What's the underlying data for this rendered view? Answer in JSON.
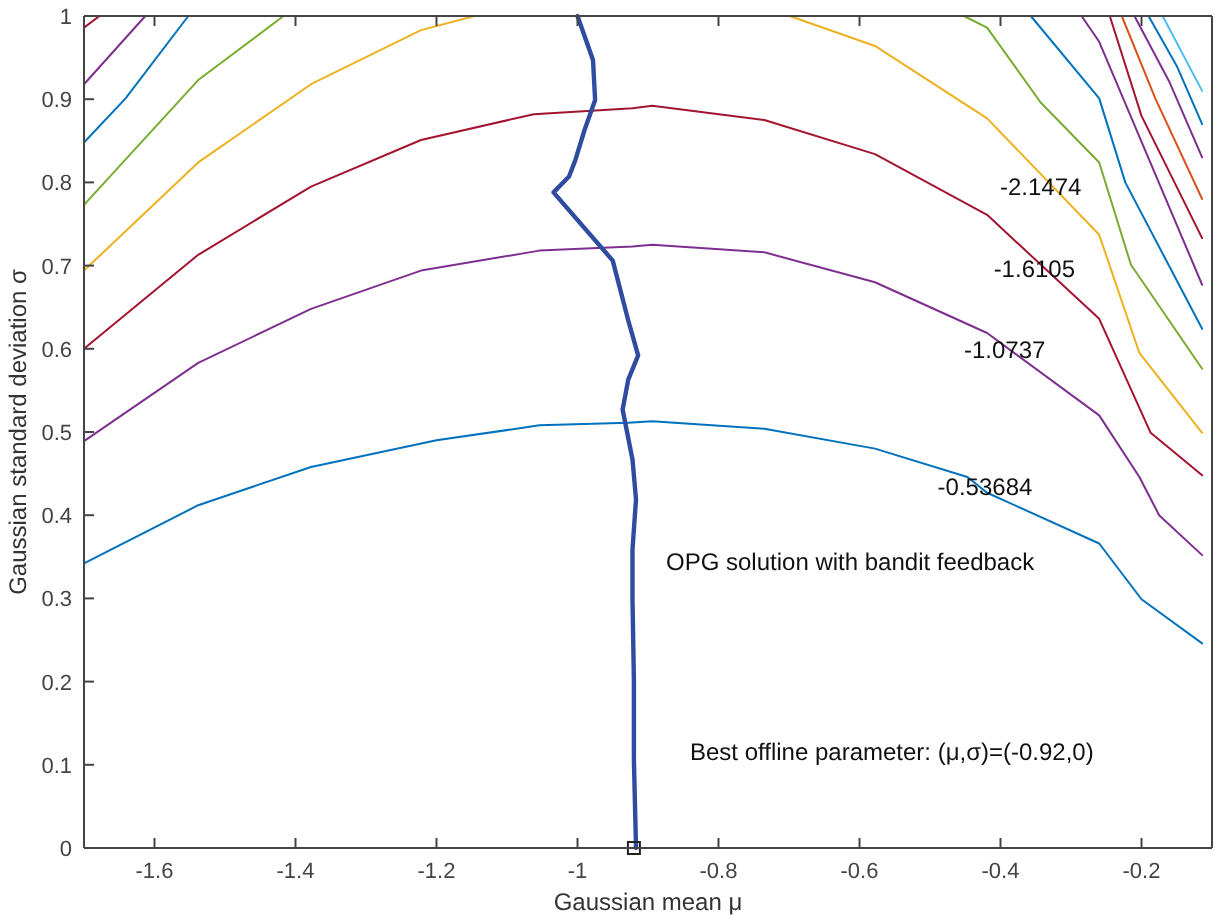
{
  "chart_data": {
    "type": "line",
    "xlabel": "Gaussian mean μ",
    "ylabel": "Gaussian standard deviation σ",
    "xlim": [
      -1.7,
      -0.1
    ],
    "ylim": [
      0,
      1
    ],
    "xticks": [
      -1.6,
      -1.4,
      -1.2,
      -1,
      -0.8,
      -0.6,
      -0.4,
      -0.2
    ],
    "yticks": [
      0,
      0.1,
      0.2,
      0.3,
      0.4,
      0.5,
      0.6,
      0.7,
      0.8,
      0.9,
      1
    ],
    "grid": false,
    "line_style": "solid",
    "series": [
      {
        "color": "#0072bd",
        "x": [
          -1.7,
          -1.538,
          -1.378,
          -1.2,
          -1.054,
          -0.928,
          -0.894,
          -0.735,
          -0.578,
          -0.447,
          -0.419,
          -0.26,
          -0.2,
          -0.114
        ],
        "values": [
          0.342,
          0.412,
          0.458,
          0.49,
          0.508,
          0.511,
          0.513,
          0.504,
          0.48,
          0.446,
          0.427,
          0.366,
          0.299,
          0.246
        ]
      },
      {
        "color": "#7e2f8e",
        "x": [
          -1.7,
          -1.538,
          -1.378,
          -1.222,
          -1.054,
          -0.922,
          -0.894,
          -0.735,
          -0.578,
          -0.419,
          -0.26,
          -0.203,
          -0.175,
          -0.114
        ],
        "values": [
          0.489,
          0.583,
          0.648,
          0.694,
          0.718,
          0.723,
          0.725,
          0.716,
          0.68,
          0.619,
          0.52,
          0.446,
          0.4,
          0.352
        ]
      },
      {
        "color": "#a2142f",
        "x": [
          -1.7,
          -1.538,
          -1.378,
          -1.222,
          -1.062,
          -0.922,
          -0.894,
          -0.735,
          -0.578,
          -0.419,
          -0.26,
          -0.187,
          -0.114
        ],
        "values": [
          0.6,
          0.713,
          0.795,
          0.851,
          0.882,
          0.889,
          0.892,
          0.875,
          0.834,
          0.761,
          0.636,
          0.499,
          0.448
        ]
      },
      {
        "color": "#edb120",
        "x": [
          -1.7,
          -1.538,
          -1.378,
          -1.222,
          -1.146
        ],
        "values": [
          0.694,
          0.824,
          0.918,
          0.983,
          1
        ]
      },
      {
        "color": "#edb120",
        "x": [
          -0.699,
          -0.578,
          -0.419,
          -0.26,
          -0.203,
          -0.114
        ],
        "values": [
          1,
          0.964,
          0.877,
          0.737,
          0.595,
          0.499
        ]
      },
      {
        "color": "#77ac30",
        "x": [
          -1.7,
          -1.538,
          -1.417
        ],
        "values": [
          0.773,
          0.923,
          1
        ]
      },
      {
        "color": "#77ac30",
        "x": [
          -0.452,
          -0.419,
          -0.343,
          -0.26,
          -0.215,
          -0.114
        ],
        "values": [
          1,
          0.986,
          0.896,
          0.824,
          0.701,
          0.576
        ]
      },
      {
        "color": "#0072bd",
        "x": [
          -1.7,
          -1.641,
          -1.552
        ],
        "values": [
          0.848,
          0.901,
          1
        ]
      },
      {
        "color": "#0072bd",
        "x": [
          -0.357,
          -0.26,
          -0.223,
          -0.114
        ],
        "values": [
          1,
          0.901,
          0.8,
          0.624
        ]
      },
      {
        "color": "#7e2f8e",
        "x": [
          -1.7,
          -1.613
        ],
        "values": [
          0.918,
          1
        ]
      },
      {
        "color": "#7e2f8e",
        "x": [
          -0.285,
          -0.26,
          -0.114
        ],
        "values": [
          1,
          0.969,
          0.677
        ]
      },
      {
        "color": "#a2142f",
        "x": [
          -1.7,
          -1.678
        ],
        "values": [
          0.986,
          1
        ]
      },
      {
        "color": "#a2142f",
        "x": [
          -0.245,
          -0.2,
          -0.114
        ],
        "values": [
          1,
          0.88,
          0.733
        ]
      },
      {
        "color": "#d95319",
        "x": [
          -0.228,
          -0.18,
          -0.114
        ],
        "values": [
          1,
          0.9,
          0.78
        ]
      },
      {
        "color": "#7e2f8e",
        "x": [
          -0.21,
          -0.16,
          -0.114
        ],
        "values": [
          1,
          0.92,
          0.83
        ]
      },
      {
        "color": "#0072bd",
        "x": [
          -0.19,
          -0.15,
          -0.114
        ],
        "values": [
          1,
          0.94,
          0.87
        ]
      },
      {
        "color": "#4dbeee",
        "x": [
          -0.17,
          -0.114
        ],
        "values": [
          1,
          0.91
        ]
      },
      {
        "color": "#2f4da0",
        "x": [
          -1,
          -0.978,
          -0.975,
          -0.99,
          -1.003,
          -1.012,
          -1.034,
          -0.95,
          -0.928,
          -0.914,
          -0.928,
          -0.936,
          -0.922,
          -0.917,
          -0.922,
          -0.922,
          -0.92,
          -0.92,
          -0.917
        ],
        "values": [
          1,
          0.947,
          0.899,
          0.863,
          0.827,
          0.807,
          0.788,
          0.706,
          0.634,
          0.592,
          0.563,
          0.527,
          0.467,
          0.419,
          0.359,
          0.299,
          0.202,
          0.106,
          0
        ]
      },
      {
        "type": "scatter",
        "marker": "square",
        "color": "#222222",
        "x": [
          -0.92
        ],
        "values": [
          0
        ]
      }
    ],
    "annotations": [
      {
        "text": "-2.1474",
        "x": -0.343,
        "y": 0.795
      },
      {
        "text": "-1.6105",
        "x": -0.352,
        "y": 0.696
      },
      {
        "text": "-1.0737",
        "x": -0.394,
        "y": 0.598
      },
      {
        "text": "-0.53684",
        "x": -0.422,
        "y": 0.434
      },
      "OPG solution with bandit feedback",
      "Best offline parameter: (μ,σ)=(-0.92,0)"
    ]
  }
}
